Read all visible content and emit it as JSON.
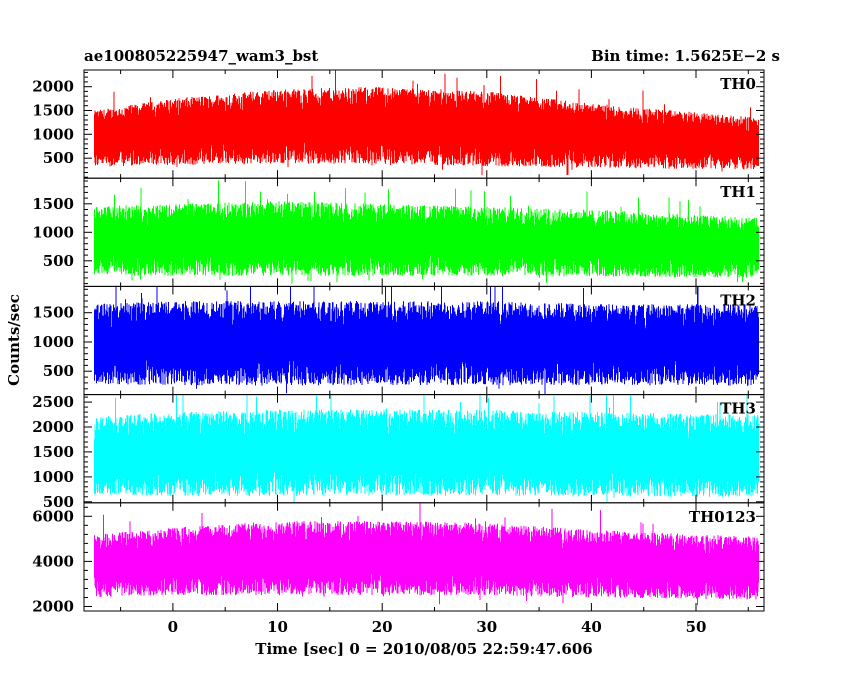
{
  "header": {
    "left_title": "ae100805225947_wam3_bst",
    "right_title": "Bin time: 1.5625E−2 s"
  },
  "axes": {
    "xlabel": "Time [sec] 0 = 2010/08/05 22:59:47.606",
    "ylabel": "Counts/sec"
  },
  "chart_data": {
    "type": "line",
    "x_range": [
      -8.5,
      56.5
    ],
    "x_ticks": [
      0,
      10,
      20,
      30,
      40,
      50
    ],
    "x_tick_labels": [
      "0",
      "10",
      "20",
      "30",
      "40",
      "50"
    ],
    "data_x_start": -7.5,
    "data_x_end": 56.0,
    "panels": [
      {
        "name": "TH0",
        "color": "#ff0000",
        "ylim": [
          80,
          2350
        ],
        "yticks": [
          500,
          1000,
          1500,
          2000
        ],
        "ytick_labels": [
          "500",
          "1000",
          "1500",
          "2000"
        ],
        "envelope": {
          "x": [
            -7.5,
            0,
            10,
            20,
            30,
            40,
            56
          ],
          "upper": [
            1500,
            1750,
            1950,
            2000,
            1900,
            1650,
            1350
          ],
          "lower": [
            320,
            350,
            380,
            380,
            330,
            300,
            260
          ]
        }
      },
      {
        "name": "TH1",
        "color": "#00ff00",
        "ylim": [
          50,
          1950
        ],
        "yticks": [
          500,
          1000,
          1500
        ],
        "ytick_labels": [
          "500",
          "1000",
          "1500"
        ],
        "envelope": {
          "x": [
            -7.5,
            0,
            10,
            20,
            30,
            40,
            56
          ],
          "upper": [
            1450,
            1500,
            1550,
            1500,
            1450,
            1400,
            1250
          ],
          "lower": [
            250,
            230,
            230,
            240,
            230,
            220,
            200
          ]
        }
      },
      {
        "name": "TH2",
        "color": "#0000ff",
        "ylim": [
          100,
          1950
        ],
        "yticks": [
          500,
          1000,
          1500
        ],
        "ytick_labels": [
          "500",
          "1000",
          "1500"
        ],
        "envelope": {
          "x": [
            -7.5,
            0,
            10,
            20,
            30,
            40,
            56
          ],
          "upper": [
            1650,
            1700,
            1700,
            1700,
            1700,
            1650,
            1650
          ],
          "lower": [
            280,
            260,
            250,
            260,
            260,
            260,
            250
          ]
        }
      },
      {
        "name": "TH3",
        "color": "#00ffff",
        "ylim": [
          480,
          2650
        ],
        "yticks": [
          500,
          1000,
          1500,
          2000,
          2500
        ],
        "ytick_labels": [
          "500",
          "1000",
          "1500",
          "2000",
          "2500"
        ],
        "envelope": {
          "x": [
            -7.5,
            0,
            10,
            20,
            30,
            40,
            56
          ],
          "upper": [
            2200,
            2300,
            2350,
            2350,
            2350,
            2300,
            2250
          ],
          "lower": [
            650,
            620,
            620,
            620,
            620,
            600,
            600
          ]
        }
      },
      {
        "name": "TH0123",
        "color": "#ff00ff",
        "ylim": [
          1800,
          6600
        ],
        "yticks": [
          2000,
          4000,
          6000
        ],
        "ytick_labels": [
          "2000",
          "4000",
          "6000"
        ],
        "envelope": {
          "x": [
            -7.5,
            0,
            10,
            20,
            30,
            40,
            56
          ],
          "upper": [
            5200,
            5500,
            5800,
            5800,
            5700,
            5400,
            5100
          ],
          "lower": [
            2400,
            2500,
            2500,
            2500,
            2500,
            2400,
            2300
          ]
        }
      }
    ]
  }
}
